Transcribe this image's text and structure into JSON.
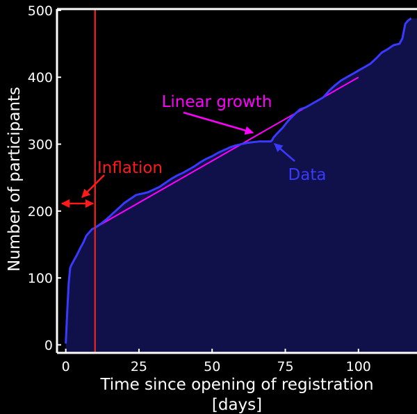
{
  "chart_data": {
    "type": "area",
    "xlabel_line1": "Time since opening of registration",
    "xlabel_line2": "[days]",
    "ylabel": "Number of participants",
    "xlim": [
      -3,
      120
    ],
    "ylim": [
      -12,
      502
    ],
    "x_ticks": [
      0,
      25,
      50,
      75,
      100
    ],
    "y_ticks": [
      0,
      100,
      200,
      300,
      400,
      500
    ],
    "background": "#000000",
    "colors": {
      "data_line": "#3a3aff",
      "fill": "#10104a",
      "linear_growth": "#ff00ff",
      "inflation": "#ff1a1a",
      "inflation_vline": "#d42424",
      "axes": "#ffffff"
    },
    "series": [
      {
        "name": "Data",
        "x": [
          0,
          0.5,
          1,
          1.5,
          2,
          3,
          4,
          5,
          6,
          7,
          8,
          9,
          10,
          12,
          14,
          16,
          18,
          20,
          22,
          24,
          26,
          28,
          30,
          32,
          34,
          36,
          38,
          40,
          42,
          44,
          46,
          48,
          50,
          52,
          54,
          56,
          58,
          60,
          62,
          64,
          66,
          68,
          70,
          70.5,
          71,
          72,
          74,
          76,
          78,
          80,
          82,
          84,
          86,
          88,
          90,
          92,
          94,
          96,
          98,
          100,
          102,
          104,
          106,
          108,
          110,
          112,
          114,
          115,
          116,
          117,
          118
        ],
        "y": [
          2,
          50,
          92,
          115,
          120,
          128,
          136,
          145,
          153,
          163,
          168,
          173,
          175,
          181,
          188,
          196,
          204,
          212,
          218,
          224,
          226,
          228,
          232,
          236,
          242,
          248,
          253,
          257,
          262,
          267,
          273,
          278,
          282,
          287,
          291,
          295,
          298,
          300,
          302,
          303,
          304,
          304,
          304,
          306,
          310,
          315,
          324,
          335,
          344,
          352,
          355,
          360,
          365,
          370,
          380,
          388,
          395,
          400,
          405,
          410,
          415,
          420,
          428,
          437,
          442,
          448,
          450,
          458,
          480,
          485,
          488
        ]
      }
    ],
    "reference_lines": {
      "linear_growth": {
        "x": [
          10,
          100
        ],
        "y": [
          175,
          400
        ]
      },
      "inflation_vline_x": 10
    },
    "annotations": {
      "linear_growth": "Linear growth",
      "inflation": "Inflation",
      "data": "Data"
    }
  }
}
